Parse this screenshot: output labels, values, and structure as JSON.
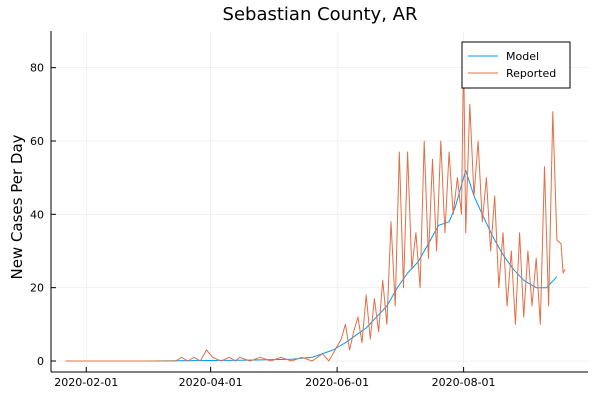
{
  "chart_data": {
    "type": "line",
    "title": "Sebastian County, AR",
    "xlabel": "",
    "ylabel": "New Cases Per Day",
    "x_type": "date",
    "xlim": [
      "2020-01-15",
      "2020-09-30"
    ],
    "ylim": [
      -3,
      90
    ],
    "x_ticks": [
      "2020-02-01",
      "2020-04-01",
      "2020-06-01",
      "2020-08-01"
    ],
    "y_ticks": [
      0,
      20,
      40,
      60,
      80
    ],
    "grid": true,
    "legend_position": "top-right",
    "series": [
      {
        "name": "Model",
        "color": "#009AFA",
        "points": [
          [
            "2020-01-22",
            0
          ],
          [
            "2020-03-01",
            0
          ],
          [
            "2020-04-15",
            0.2
          ],
          [
            "2020-05-10",
            0.5
          ],
          [
            "2020-05-20",
            1
          ],
          [
            "2020-05-30",
            3
          ],
          [
            "2020-06-05",
            5
          ],
          [
            "2020-06-10",
            7
          ],
          [
            "2020-06-15",
            9
          ],
          [
            "2020-06-20",
            12
          ],
          [
            "2020-06-25",
            15
          ],
          [
            "2020-06-30",
            20
          ],
          [
            "2020-07-05",
            24
          ],
          [
            "2020-07-10",
            27
          ],
          [
            "2020-07-15",
            32
          ],
          [
            "2020-07-20",
            37
          ],
          [
            "2020-07-25",
            38
          ],
          [
            "2020-07-28",
            42
          ],
          [
            "2020-08-02",
            52
          ],
          [
            "2020-08-06",
            45
          ],
          [
            "2020-08-10",
            40
          ],
          [
            "2020-08-15",
            34
          ],
          [
            "2020-08-20",
            29
          ],
          [
            "2020-08-25",
            25
          ],
          [
            "2020-08-30",
            22
          ],
          [
            "2020-09-05",
            20
          ],
          [
            "2020-09-10",
            20
          ],
          [
            "2020-09-15",
            23
          ]
        ]
      },
      {
        "name": "Reported",
        "color": "#E26F46",
        "points": [
          [
            "2020-01-22",
            0
          ],
          [
            "2020-03-15",
            0
          ],
          [
            "2020-03-18",
            1
          ],
          [
            "2020-03-21",
            0
          ],
          [
            "2020-03-24",
            1
          ],
          [
            "2020-03-27",
            0
          ],
          [
            "2020-03-30",
            3
          ],
          [
            "2020-04-02",
            1
          ],
          [
            "2020-04-06",
            0
          ],
          [
            "2020-04-10",
            1
          ],
          [
            "2020-04-13",
            0
          ],
          [
            "2020-04-15",
            1
          ],
          [
            "2020-04-20",
            0
          ],
          [
            "2020-04-25",
            1
          ],
          [
            "2020-04-30",
            0
          ],
          [
            "2020-05-05",
            1
          ],
          [
            "2020-05-10",
            0
          ],
          [
            "2020-05-15",
            1
          ],
          [
            "2020-05-20",
            0
          ],
          [
            "2020-05-25",
            2
          ],
          [
            "2020-05-28",
            0
          ],
          [
            "2020-05-31",
            3
          ],
          [
            "2020-06-03",
            6
          ],
          [
            "2020-06-05",
            10
          ],
          [
            "2020-06-07",
            3
          ],
          [
            "2020-06-09",
            8
          ],
          [
            "2020-06-11",
            12
          ],
          [
            "2020-06-13",
            5
          ],
          [
            "2020-06-15",
            18
          ],
          [
            "2020-06-17",
            6
          ],
          [
            "2020-06-19",
            17
          ],
          [
            "2020-06-21",
            8
          ],
          [
            "2020-06-23",
            22
          ],
          [
            "2020-06-25",
            10
          ],
          [
            "2020-06-27",
            38
          ],
          [
            "2020-06-29",
            15
          ],
          [
            "2020-07-01",
            57
          ],
          [
            "2020-07-03",
            20
          ],
          [
            "2020-07-05",
            57
          ],
          [
            "2020-07-07",
            25
          ],
          [
            "2020-07-09",
            35
          ],
          [
            "2020-07-11",
            20
          ],
          [
            "2020-07-13",
            60
          ],
          [
            "2020-07-15",
            28
          ],
          [
            "2020-07-17",
            55
          ],
          [
            "2020-07-19",
            30
          ],
          [
            "2020-07-21",
            60
          ],
          [
            "2020-07-23",
            35
          ],
          [
            "2020-07-25",
            57
          ],
          [
            "2020-07-27",
            40
          ],
          [
            "2020-07-29",
            50
          ],
          [
            "2020-07-31",
            40
          ],
          [
            "2020-08-01",
            85
          ],
          [
            "2020-08-02",
            35
          ],
          [
            "2020-08-04",
            70
          ],
          [
            "2020-08-06",
            45
          ],
          [
            "2020-08-08",
            60
          ],
          [
            "2020-08-10",
            38
          ],
          [
            "2020-08-12",
            50
          ],
          [
            "2020-08-14",
            30
          ],
          [
            "2020-08-16",
            45
          ],
          [
            "2020-08-18",
            20
          ],
          [
            "2020-08-20",
            35
          ],
          [
            "2020-08-22",
            15
          ],
          [
            "2020-08-24",
            30
          ],
          [
            "2020-08-26",
            10
          ],
          [
            "2020-08-28",
            35
          ],
          [
            "2020-08-30",
            12
          ],
          [
            "2020-09-01",
            30
          ],
          [
            "2020-09-03",
            15
          ],
          [
            "2020-09-05",
            28
          ],
          [
            "2020-09-07",
            10
          ],
          [
            "2020-09-09",
            53
          ],
          [
            "2020-09-11",
            15
          ],
          [
            "2020-09-13",
            68
          ],
          [
            "2020-09-15",
            33
          ],
          [
            "2020-09-17",
            32
          ],
          [
            "2020-09-18",
            24
          ],
          [
            "2020-09-19",
            25
          ]
        ]
      }
    ]
  }
}
